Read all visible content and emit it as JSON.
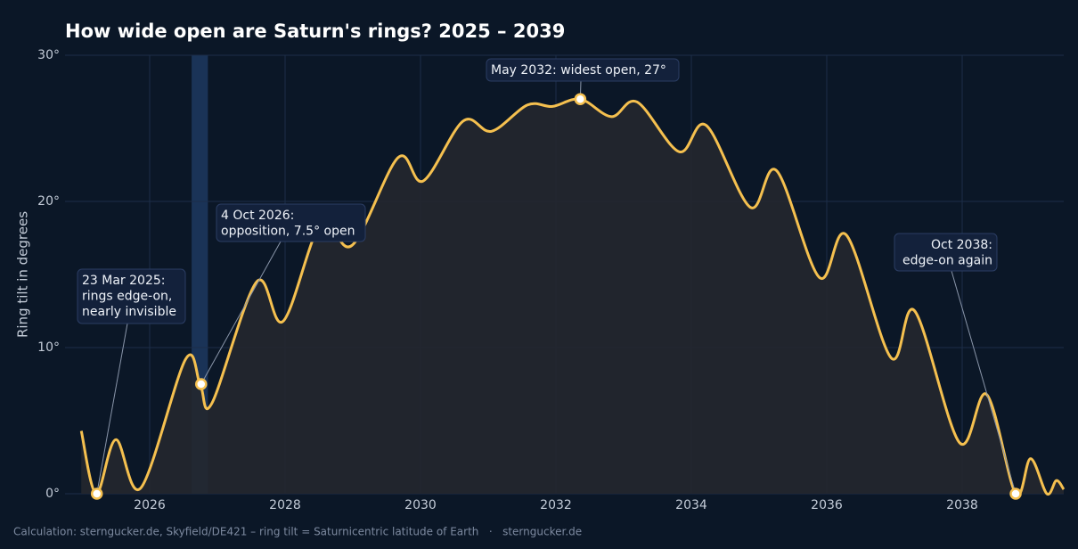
{
  "chart_data": {
    "type": "line",
    "title": "How wide open are Saturn's rings? 2025 – 2039",
    "y_label": "Ring tilt in degrees",
    "footer": "Calculation: sterngucker.de, Skyfield/DE421 – ring tilt = Saturnicentric latitude of Earth   ·   sterngucker.de",
    "x": [
      2024.99,
      2025.21,
      2025.5,
      2025.87,
      2026.53,
      2026.75,
      2026.92,
      2027.58,
      2027.97,
      2028.53,
      2028.99,
      2029.67,
      2030.04,
      2030.63,
      2031.05,
      2031.58,
      2031.95,
      2032.36,
      2032.82,
      2033.2,
      2033.82,
      2034.22,
      2034.87,
      2035.26,
      2035.89,
      2036.29,
      2036.95,
      2037.3,
      2037.96,
      2038.36,
      2038.79,
      2039.01,
      2039.25,
      2039.39,
      2039.5
    ],
    "series": [
      {
        "name": "Ring tilt",
        "color": "#f5c04f",
        "values": [
          4.3,
          0,
          3.7,
          0.4,
          9.2,
          7.4,
          6.2,
          14.5,
          11.8,
          18.5,
          17.0,
          23.0,
          21.4,
          25.5,
          24.8,
          26.6,
          26.5,
          27.0,
          25.8,
          26.8,
          23.4,
          25.2,
          19.6,
          22.1,
          14.8,
          17.7,
          9.3,
          12.5,
          3.5,
          6.8,
          0,
          2.4,
          0,
          0.9,
          0.3
        ]
      }
    ],
    "xlim": [
      2024.75,
      2039.5
    ],
    "ylim": [
      0,
      30
    ],
    "xticks": [
      2026,
      2028,
      2030,
      2032,
      2034,
      2036,
      2038
    ],
    "yticks": [
      {
        "value": 0,
        "label": "0°"
      },
      {
        "value": 10,
        "label": "10°"
      },
      {
        "value": 20,
        "label": "20°"
      },
      {
        "value": 30,
        "label": "30°"
      }
    ],
    "grid": true,
    "highlight_band": [
      2026.62,
      2026.86
    ],
    "annotations": [
      {
        "x": 2025.22,
        "y": 0,
        "lines": [
          "23 Mar 2025:",
          "rings edge-on,",
          "nearly invisible"
        ]
      },
      {
        "x": 2026.76,
        "y": 7.5,
        "lines": [
          "4 Oct 2026:",
          "opposition, 7.5° open"
        ]
      },
      {
        "x": 2032.36,
        "y": 27,
        "lines": [
          "May 2032: widest open, 27°"
        ]
      },
      {
        "x": 2038.79,
        "y": 0,
        "lines": [
          "Oct 2038:",
          "edge-on again"
        ]
      }
    ]
  }
}
